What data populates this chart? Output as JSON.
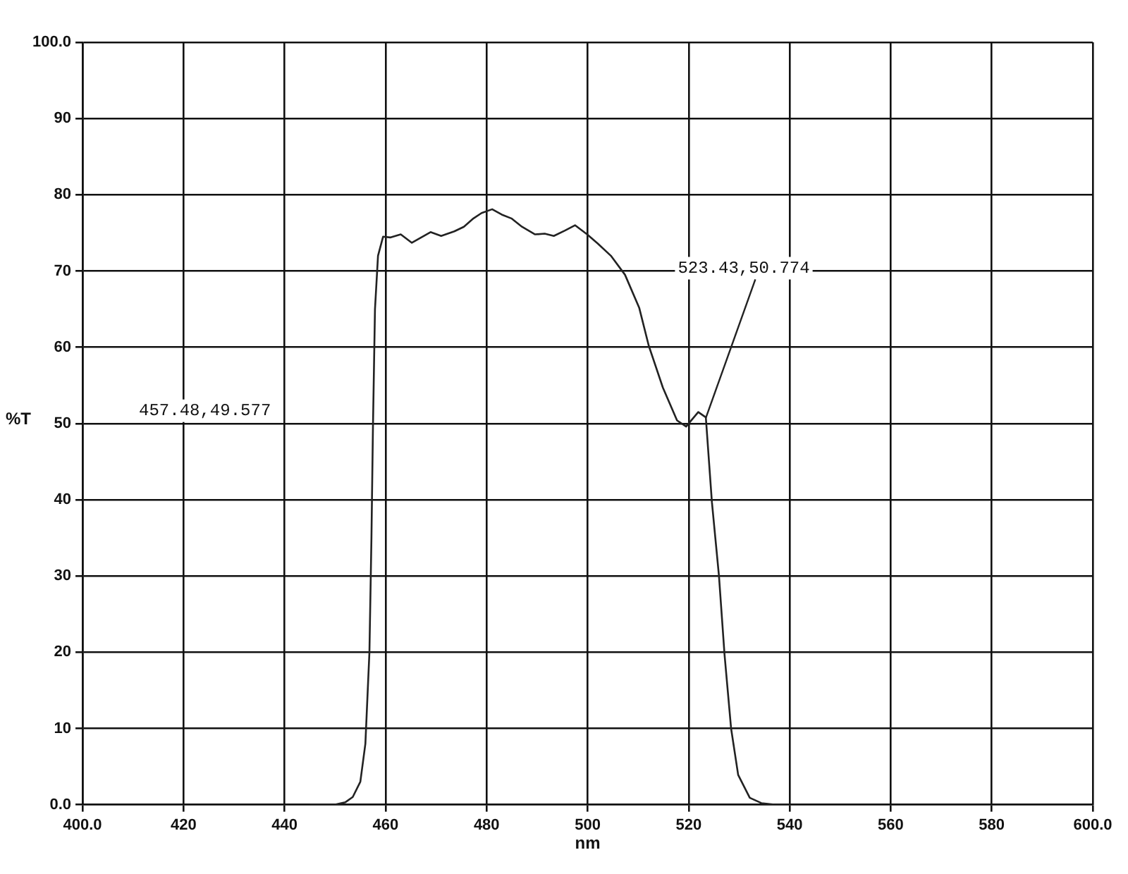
{
  "chart_data": {
    "type": "line",
    "xlabel": "nm",
    "ylabel": "%T",
    "xlim": [
      400,
      600
    ],
    "ylim": [
      0,
      100
    ],
    "xticks": [
      {
        "value": 400,
        "label": "400.0"
      },
      420,
      440,
      460,
      480,
      500,
      520,
      540,
      560,
      580,
      {
        "value": 600,
        "label": "600.0"
      }
    ],
    "yticks": [
      {
        "value": 0,
        "label": "0.0"
      },
      10,
      20,
      30,
      40,
      50,
      60,
      70,
      80,
      90,
      {
        "value": 100,
        "label": "100.0"
      }
    ],
    "grid": true,
    "legend": false,
    "marker": "none",
    "line_style": "solid",
    "series": [
      {
        "color": "#222222",
        "x": [
          445,
          450,
          452,
          453.5,
          455,
          456,
          456.8,
          457.2,
          457.5,
          457.9,
          458.5,
          459.5,
          460.9,
          463,
          465.2,
          468.9,
          471,
          473.6,
          475.5,
          477.4,
          479,
          481.1,
          483,
          484.9,
          487,
          489.6,
          491.5,
          493.3,
          495.5,
          497.5,
          499.9,
          502,
          504.6,
          507.4,
          510.2,
          512.1,
          514.9,
          517.7,
          519.5,
          521.9,
          523.4,
          524.6,
          526,
          527.1,
          528.4,
          529.8,
          532.1,
          534.4,
          537,
          540
        ],
        "values": [
          0,
          0,
          0.3,
          1,
          3,
          8,
          20,
          35,
          49.6,
          65,
          72,
          74.5,
          74.4,
          74.8,
          73.7,
          75.1,
          74.6,
          75.2,
          75.8,
          76.9,
          77.6,
          78.1,
          77.4,
          76.9,
          75.8,
          74.8,
          74.9,
          74.6,
          75.3,
          76,
          74.8,
          73.6,
          72,
          69.5,
          65.2,
          60.2,
          54.7,
          50.4,
          49.6,
          51.5,
          50.8,
          39.7,
          30,
          19.7,
          10,
          3.9,
          0.9,
          0.2,
          0,
          0
        ]
      }
    ],
    "annotations": [
      "457.48,49.577",
      {
        "text": "523.43,50.774",
        "x": 523.43,
        "y": 50.774
      }
    ]
  }
}
